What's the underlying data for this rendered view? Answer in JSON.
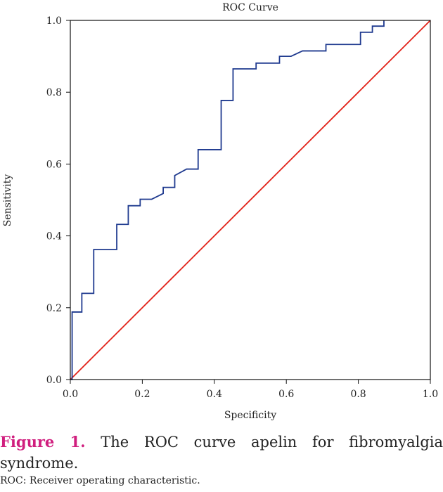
{
  "chart_data": {
    "type": "line",
    "title": "ROC Curve",
    "xlabel": "Specificity",
    "ylabel": "Sensitivity",
    "xlim": [
      0,
      1
    ],
    "ylim": [
      0,
      1
    ],
    "x_ticks": [
      "0.0",
      "0.2",
      "0.4",
      "0.6",
      "0.8",
      "1.0"
    ],
    "y_ticks": [
      "0.0",
      "0.2",
      "0.4",
      "0.6",
      "0.8",
      "1.0"
    ],
    "grid": false,
    "series": [
      {
        "name": "ROC curve",
        "color": "#1f3a8f",
        "x": [
          0.0,
          0.0,
          0.005,
          0.005,
          0.032,
          0.032,
          0.065,
          0.065,
          0.129,
          0.129,
          0.161,
          0.161,
          0.194,
          0.194,
          0.226,
          0.258,
          0.258,
          0.29,
          0.29,
          0.323,
          0.355,
          0.355,
          0.419,
          0.419,
          0.452,
          0.452,
          0.516,
          0.516,
          0.581,
          0.581,
          0.613,
          0.645,
          0.71,
          0.71,
          0.774,
          0.806,
          0.806,
          0.839,
          0.839,
          0.871,
          0.871
        ],
        "y": [
          0.0,
          0.0,
          0.0,
          0.188,
          0.188,
          0.24,
          0.24,
          0.362,
          0.362,
          0.432,
          0.432,
          0.484,
          0.484,
          0.502,
          0.502,
          0.518,
          0.535,
          0.535,
          0.568,
          0.586,
          0.586,
          0.64,
          0.64,
          0.777,
          0.777,
          0.865,
          0.865,
          0.881,
          0.881,
          0.9,
          0.9,
          0.915,
          0.915,
          0.933,
          0.933,
          0.933,
          0.967,
          0.967,
          0.984,
          0.984,
          1.0
        ]
      },
      {
        "name": "Reference line",
        "color": "#e2231a",
        "x": [
          0,
          1
        ],
        "y": [
          0,
          1
        ]
      }
    ]
  },
  "caption": {
    "figure_label": "Figure 1.",
    "text": " The ROC curve apelin for fibromyalgia syndrome.",
    "label_color": "#d01e7e"
  },
  "note": "ROC: Receiver operating characteristic."
}
